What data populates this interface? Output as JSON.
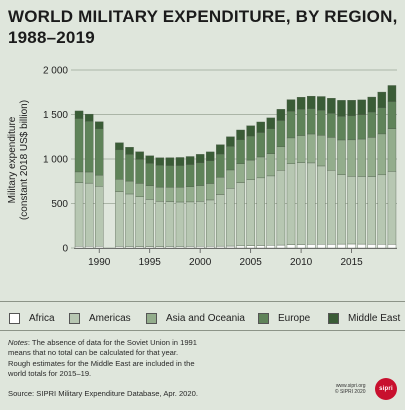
{
  "header": {
    "title_line1": "WORLD MILITARY EXPENDITURE, BY REGION,",
    "title_line2": "1988–2019"
  },
  "chart_data": {
    "type": "bar",
    "stacked": true,
    "title": "WORLD MILITARY EXPENDITURE, BY REGION, 1988–2019",
    "ylabel_line1": "Military expenditure",
    "ylabel_line2": "(constant 2018 US$ billion)",
    "ylim": [
      0,
      2000
    ],
    "yticks": [
      0,
      500,
      1000,
      1500,
      2000
    ],
    "ytick_labels": [
      "0",
      "500",
      "1 000",
      "1 500",
      "2 000"
    ],
    "xtick_labels": [
      "1990",
      "1995",
      "2000",
      "2005",
      "2010",
      "2015"
    ],
    "xtick_years": [
      1990,
      1995,
      2000,
      2005,
      2010,
      2015
    ],
    "grid": true,
    "legend_position": "bottom",
    "categories": [
      1988,
      1989,
      1990,
      1991,
      1992,
      1993,
      1994,
      1995,
      1996,
      1997,
      1998,
      1999,
      2000,
      2001,
      2002,
      2003,
      2004,
      2005,
      2006,
      2007,
      2008,
      2009,
      2010,
      2011,
      2012,
      2013,
      2014,
      2015,
      2016,
      2017,
      2018,
      2019
    ],
    "series": [
      {
        "name": "Africa",
        "color": "#ffffff",
        "values": [
          20,
          19,
          19,
          null,
          18,
          17,
          16,
          16,
          16,
          17,
          17,
          18,
          19,
          20,
          21,
          22,
          24,
          26,
          28,
          30,
          33,
          37,
          39,
          41,
          42,
          43,
          44,
          45,
          44,
          43,
          42,
          41
        ]
      },
      {
        "name": "Americas",
        "color": "#b7c7b2",
        "values": [
          715,
          710,
          675,
          null,
          615,
          590,
          560,
          530,
          510,
          505,
          500,
          500,
          505,
          520,
          580,
          650,
          710,
          740,
          760,
          780,
          840,
          910,
          920,
          915,
          880,
          830,
          780,
          760,
          760,
          760,
          780,
          820
        ]
      },
      {
        "name": "Asia and Oceania",
        "color": "#93ad8c",
        "values": [
          120,
          125,
          125,
          null,
          140,
          145,
          150,
          155,
          158,
          160,
          165,
          170,
          178,
          185,
          195,
          205,
          212,
          222,
          235,
          250,
          265,
          290,
          305,
          325,
          345,
          370,
          390,
          410,
          420,
          440,
          460,
          480
        ]
      },
      {
        "name": "Europe",
        "color": "#5f8359",
        "values": [
          600,
          570,
          520,
          null,
          330,
          300,
          270,
          250,
          245,
          245,
          245,
          250,
          255,
          255,
          260,
          265,
          270,
          270,
          275,
          280,
          295,
          300,
          295,
          285,
          280,
          270,
          265,
          270,
          275,
          285,
          295,
          305
        ]
      },
      {
        "name": "Middle East",
        "color": "#3a5c36",
        "values": [
          85,
          80,
          80,
          null,
          80,
          80,
          85,
          85,
          85,
          88,
          90,
          90,
          95,
          100,
          105,
          108,
          110,
          115,
          118,
          122,
          125,
          130,
          135,
          140,
          155,
          170,
          180,
          175,
          165,
          168,
          175,
          180
        ]
      }
    ]
  },
  "legend": [
    {
      "label": "Africa",
      "color": "#ffffff"
    },
    {
      "label": "Americas",
      "color": "#b7c7b2"
    },
    {
      "label": "Asia and Oceania",
      "color": "#93ad8c"
    },
    {
      "label": "Europe",
      "color": "#5f8359"
    },
    {
      "label": "Middle East",
      "color": "#3a5c36"
    }
  ],
  "notes": {
    "label": "Notes",
    "line1_rest": ": The absence of data for the Soviet Union in 1991",
    "line2": "means that no total can be calculated for that year.",
    "line3": "Rough estimates for the Middle East are included in the",
    "line4": "world totals for 2015–19."
  },
  "source": "Source: SIPRI Military Expenditure Database, Apr. 2020.",
  "footer": {
    "website": "www.sipri.org",
    "copyright": "© SIPRI 2020",
    "logo_text": "sipri"
  }
}
